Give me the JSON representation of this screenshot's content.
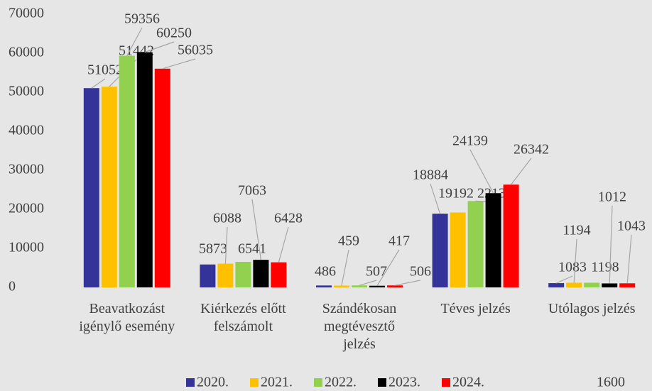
{
  "chart_data": {
    "type": "bar",
    "categories": [
      "Beavatkozást igénylő esemény",
      "Kiérkezés előtt felszámolt",
      "Szándékosan megtévesztő jelzés",
      "Téves jelzés",
      "Utólagos jelzés"
    ],
    "series": [
      {
        "name": "2020.",
        "color": "#333399",
        "values": [
          51052,
          5873,
          486,
          18884,
          1083
        ]
      },
      {
        "name": "2021.",
        "color": "#ffc000",
        "values": [
          51442,
          6088,
          459,
          19192,
          1194
        ]
      },
      {
        "name": "2022.",
        "color": "#92d050",
        "values": [
          59356,
          6541,
          507,
          22131,
          1198
        ]
      },
      {
        "name": "2023.",
        "color": "#000000",
        "values": [
          60250,
          7063,
          417,
          24139,
          1012
        ]
      },
      {
        "name": "2024.",
        "color": "#ff0000",
        "values": [
          56035,
          6428,
          506,
          26342,
          1043
        ]
      }
    ],
    "ylim": [
      0,
      70000
    ],
    "yticks": [
      0,
      10000,
      20000,
      30000,
      40000,
      50000,
      60000,
      70000
    ],
    "grid": false,
    "legend": "bottom",
    "annotations": [
      "1600"
    ]
  }
}
